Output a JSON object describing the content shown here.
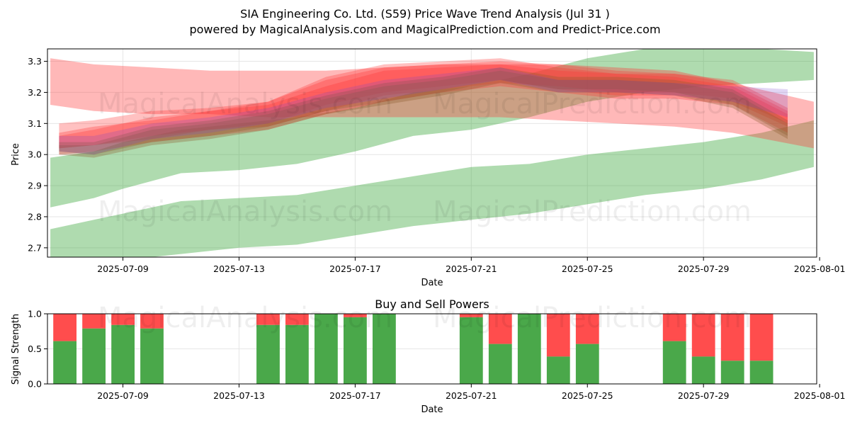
{
  "chart_data": [
    {
      "type": "area",
      "title_line1": "SIA Engineering Co. Ltd. (S59) Price Wave Trend Analysis (Jul 31 )",
      "title_line2": "powered by MagicalAnalysis.com and MagicalPrediction.com and Predict-Price.com",
      "xlabel": "Date",
      "ylabel": "Price",
      "xlim": [
        -1.6,
        24.9
      ],
      "ylim": [
        2.67,
        3.34
      ],
      "x_ticks": [
        {
          "d": 1,
          "label": "2025-07-09"
        },
        {
          "d": 5,
          "label": "2025-07-13"
        },
        {
          "d": 9,
          "label": "2025-07-17"
        },
        {
          "d": 13,
          "label": "2025-07-21"
        },
        {
          "d": 17,
          "label": "2025-07-25"
        },
        {
          "d": 21,
          "label": "2025-07-29"
        },
        {
          "d": 25,
          "label": "2025-08-01"
        }
      ],
      "y_ticks": [
        {
          "v": 2.7,
          "label": "2.7"
        },
        {
          "v": 2.8,
          "label": "2.8"
        },
        {
          "v": 2.9,
          "label": "2.9"
        },
        {
          "v": 3.0,
          "label": "3.0"
        },
        {
          "v": 3.1,
          "label": "3.1"
        },
        {
          "v": 3.2,
          "label": "3.2"
        },
        {
          "v": 3.3,
          "label": "3.3"
        }
      ],
      "series": [
        {
          "name": "green-band-low",
          "color": "#2ca02c",
          "opacity": 0.38,
          "x": [
            -1.5,
            0,
            1,
            3,
            5,
            7,
            9,
            11,
            13,
            15,
            17,
            19,
            21,
            23,
            24.8
          ],
          "upper": [
            2.76,
            2.79,
            2.81,
            2.85,
            2.86,
            2.87,
            2.9,
            2.93,
            2.96,
            2.97,
            3.0,
            3.02,
            3.04,
            3.07,
            3.11
          ],
          "lower": [
            2.64,
            2.66,
            2.66,
            2.68,
            2.7,
            2.71,
            2.74,
            2.77,
            2.79,
            2.81,
            2.84,
            2.87,
            2.89,
            2.92,
            2.96
          ]
        },
        {
          "name": "green-band-high",
          "color": "#2ca02c",
          "opacity": 0.38,
          "x": [
            -1.5,
            0,
            1,
            3,
            5,
            7,
            9,
            11,
            13,
            15,
            17,
            19,
            21,
            23,
            24.8
          ],
          "upper": [
            2.99,
            3.01,
            3.04,
            3.08,
            3.1,
            3.12,
            3.15,
            3.2,
            3.22,
            3.26,
            3.31,
            3.34,
            3.35,
            3.34,
            3.33
          ],
          "lower": [
            2.83,
            2.86,
            2.89,
            2.94,
            2.95,
            2.97,
            3.01,
            3.06,
            3.08,
            3.12,
            3.17,
            3.2,
            3.22,
            3.23,
            3.24
          ]
        },
        {
          "name": "red-band-wide",
          "color": "#ff3333",
          "opacity": 0.35,
          "x": [
            -1.5,
            0,
            2,
            4,
            6,
            8,
            10,
            12,
            14,
            16,
            18,
            20,
            22,
            24.8
          ],
          "upper": [
            3.31,
            3.29,
            3.28,
            3.27,
            3.27,
            3.27,
            3.28,
            3.29,
            3.29,
            3.29,
            3.28,
            3.27,
            3.23,
            3.17
          ],
          "lower": [
            3.16,
            3.14,
            3.13,
            3.13,
            3.12,
            3.12,
            3.12,
            3.12,
            3.12,
            3.11,
            3.1,
            3.09,
            3.07,
            3.02
          ]
        },
        {
          "name": "red-band-1",
          "color": "#ff3333",
          "opacity": 0.3,
          "x": [
            -1.2,
            0,
            2,
            4,
            6,
            8,
            10,
            12,
            14,
            16,
            18,
            20,
            22,
            23.9
          ],
          "upper": [
            3.1,
            3.11,
            3.14,
            3.15,
            3.17,
            3.24,
            3.28,
            3.29,
            3.3,
            3.29,
            3.27,
            3.26,
            3.24,
            3.15
          ],
          "lower": [
            3.02,
            3.03,
            3.06,
            3.08,
            3.09,
            3.14,
            3.19,
            3.21,
            3.23,
            3.22,
            3.2,
            3.2,
            3.18,
            3.1
          ]
        },
        {
          "name": "red-band-2",
          "color": "#ff3333",
          "opacity": 0.3,
          "x": [
            -1.2,
            0,
            2,
            4,
            6,
            8,
            10,
            12,
            14,
            16,
            18,
            20,
            22,
            23.9
          ],
          "upper": [
            3.06,
            3.08,
            3.12,
            3.14,
            3.16,
            3.22,
            3.27,
            3.28,
            3.29,
            3.27,
            3.26,
            3.25,
            3.22,
            3.13
          ],
          "lower": [
            3.0,
            3.01,
            3.04,
            3.06,
            3.08,
            3.13,
            3.17,
            3.2,
            3.22,
            3.2,
            3.18,
            3.18,
            3.16,
            3.07
          ]
        },
        {
          "name": "red-band-3",
          "color": "#ff3333",
          "opacity": 0.3,
          "x": [
            -1.2,
            0,
            2,
            4,
            6,
            8,
            10,
            12,
            14,
            16,
            18,
            20,
            22,
            23.9
          ],
          "upper": [
            3.07,
            3.09,
            3.11,
            3.14,
            3.17,
            3.25,
            3.29,
            3.3,
            3.31,
            3.28,
            3.26,
            3.26,
            3.23,
            3.14
          ],
          "lower": [
            3.02,
            3.03,
            3.05,
            3.08,
            3.1,
            3.16,
            3.2,
            3.22,
            3.24,
            3.21,
            3.19,
            3.19,
            3.17,
            3.09
          ]
        },
        {
          "name": "brown-band-1",
          "color": "#8b5a2b",
          "opacity": 0.32,
          "x": [
            -1.2,
            0,
            2,
            4,
            6,
            8,
            10,
            12,
            14,
            16,
            18,
            20,
            22,
            23.9
          ],
          "upper": [
            3.03,
            3.03,
            3.08,
            3.1,
            3.13,
            3.18,
            3.22,
            3.24,
            3.27,
            3.24,
            3.24,
            3.23,
            3.2,
            3.1
          ],
          "lower": [
            3.0,
            2.99,
            3.03,
            3.05,
            3.08,
            3.13,
            3.16,
            3.19,
            3.23,
            3.2,
            3.2,
            3.19,
            3.15,
            3.05
          ]
        },
        {
          "name": "brown-band-2",
          "color": "#8b5a2b",
          "opacity": 0.32,
          "x": [
            -1.2,
            0,
            2,
            4,
            6,
            8,
            10,
            12,
            14,
            16,
            18,
            20,
            22,
            23.9
          ],
          "upper": [
            3.04,
            3.04,
            3.09,
            3.11,
            3.14,
            3.19,
            3.23,
            3.25,
            3.28,
            3.25,
            3.25,
            3.24,
            3.21,
            3.11
          ],
          "lower": [
            3.01,
            3.0,
            3.04,
            3.06,
            3.09,
            3.14,
            3.17,
            3.2,
            3.24,
            3.21,
            3.21,
            3.2,
            3.16,
            3.06
          ]
        },
        {
          "name": "purple-band",
          "color": "#7744cc",
          "opacity": 0.22,
          "x": [
            -1.2,
            0,
            2,
            4,
            6,
            8,
            10,
            12,
            14,
            16,
            18,
            20,
            22,
            23.9
          ],
          "upper": [
            3.06,
            3.06,
            3.1,
            3.12,
            3.15,
            3.2,
            3.24,
            3.26,
            3.28,
            3.24,
            3.24,
            3.23,
            3.22,
            3.21
          ],
          "lower": [
            3.01,
            3.0,
            3.05,
            3.07,
            3.1,
            3.15,
            3.18,
            3.21,
            3.24,
            3.2,
            3.2,
            3.19,
            3.17,
            3.12
          ]
        }
      ]
    },
    {
      "type": "bar",
      "title": "Buy and Sell Powers",
      "xlabel": "Date",
      "ylabel": "Signal Strength",
      "xlim": [
        -1.6,
        24.9
      ],
      "ylim": [
        0,
        1
      ],
      "x_ticks": [
        {
          "d": 1,
          "label": "2025-07-09"
        },
        {
          "d": 5,
          "label": "2025-07-13"
        },
        {
          "d": 9,
          "label": "2025-07-17"
        },
        {
          "d": 13,
          "label": "2025-07-21"
        },
        {
          "d": 17,
          "label": "2025-07-25"
        },
        {
          "d": 21,
          "label": "2025-07-29"
        },
        {
          "d": 25,
          "label": "2025-08-01"
        }
      ],
      "y_ticks": [
        {
          "v": 0.0,
          "label": "0.0"
        },
        {
          "v": 0.5,
          "label": "0.5"
        },
        {
          "v": 1.0,
          "label": "1.0"
        }
      ],
      "bar_width": 0.8,
      "buy_color": "#4aa84a",
      "sell_color": "#ff4d4d",
      "bars": [
        {
          "d": -1,
          "buy": 0.61
        },
        {
          "d": 0,
          "buy": 0.79
        },
        {
          "d": 1,
          "buy": 0.84
        },
        {
          "d": 2,
          "buy": 0.79
        },
        {
          "d": 6,
          "buy": 0.84
        },
        {
          "d": 7,
          "buy": 0.84
        },
        {
          "d": 8,
          "buy": 1.0
        },
        {
          "d": 9,
          "buy": 0.95
        },
        {
          "d": 10,
          "buy": 1.0
        },
        {
          "d": 13,
          "buy": 0.95
        },
        {
          "d": 14,
          "buy": 0.57
        },
        {
          "d": 15,
          "buy": 1.0
        },
        {
          "d": 16,
          "buy": 0.39
        },
        {
          "d": 17,
          "buy": 0.57
        },
        {
          "d": 20,
          "buy": 0.61
        },
        {
          "d": 21,
          "buy": 0.39
        },
        {
          "d": 22,
          "buy": 0.33
        },
        {
          "d": 23,
          "buy": 0.33
        }
      ]
    }
  ],
  "watermarks": {
    "left": "MagicalAnalysis.com",
    "right": "MagicalPrediction.com"
  }
}
